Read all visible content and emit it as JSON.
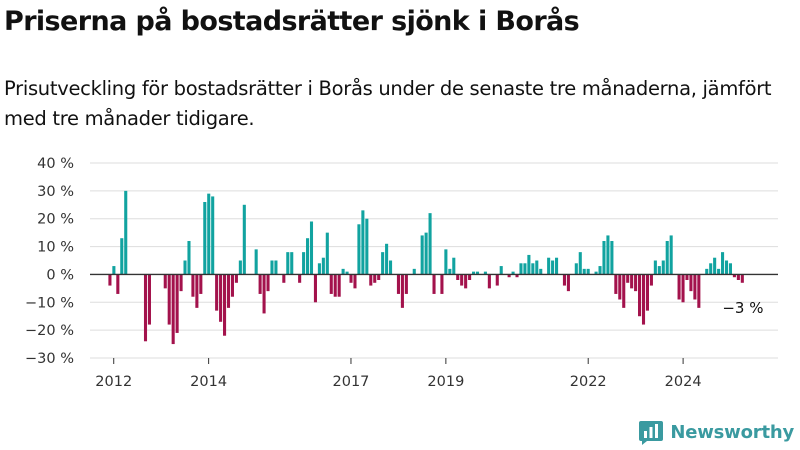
{
  "header": {
    "title": "Priserna på bostadsrätter sjönk i Borås",
    "subtitle": "Prisutveckling för bostadsrätter i Borås under de senaste tre månaderna, jämfört med tre månader tidigare."
  },
  "brand": {
    "name": "Newsworthy",
    "icon": "newsworthy-logo-icon"
  },
  "colors": {
    "positive": "#11a3a0",
    "negative": "#a3124c",
    "grid": "#dddddd",
    "zero_line": "#333333",
    "text": "#333333"
  },
  "chart_data": {
    "type": "bar",
    "ylim": [
      -30,
      40
    ],
    "y_ticks": [
      40,
      30,
      20,
      10,
      0,
      -10,
      -20,
      -30
    ],
    "y_tick_labels": [
      "40 %",
      "30 %",
      "20 %",
      "10 %",
      "0 %",
      "−10 %",
      "−20 %",
      "−30 %"
    ],
    "x_ticks": [
      {
        "value": 2012,
        "label": "2012"
      },
      {
        "value": 2014,
        "label": "2014"
      },
      {
        "value": 2017,
        "label": "2017"
      },
      {
        "value": 2019,
        "label": "2019"
      },
      {
        "value": 2022,
        "label": "2022"
      },
      {
        "value": 2024,
        "label": "2024"
      }
    ],
    "x_start": 2011.92,
    "x_step": 0.0833,
    "values": [
      -4,
      3,
      -7,
      13,
      30,
      0,
      0,
      0,
      0,
      -24,
      -18,
      0,
      0,
      0,
      -5,
      -18,
      -25,
      -21,
      -6,
      5,
      12,
      -8,
      -12,
      -7,
      26,
      29,
      28,
      -13,
      -17,
      -22,
      -12,
      -8,
      -3,
      5,
      25,
      0,
      0,
      9,
      -7,
      -14,
      -6,
      5,
      5,
      0,
      -3,
      8,
      8,
      0,
      -3,
      8,
      13,
      19,
      -10,
      4,
      6,
      15,
      -7,
      -8,
      -8,
      2,
      1,
      -3,
      -5,
      18,
      23,
      20,
      -4,
      -3,
      -2,
      8,
      11,
      5,
      0,
      -7,
      -12,
      -7,
      0,
      2,
      0,
      14,
      15,
      22,
      -7,
      0,
      -7,
      9,
      2,
      6,
      -2,
      -4,
      -5,
      -2,
      1,
      1,
      0,
      1,
      -5,
      0,
      -4,
      3,
      0,
      -1,
      1,
      -1,
      4,
      4,
      7,
      4,
      5,
      2,
      0,
      6,
      5,
      6,
      0,
      -4,
      -6,
      0,
      4,
      8,
      2,
      2,
      0,
      1,
      3,
      12,
      14,
      12,
      -7,
      -9,
      -12,
      -3,
      -5,
      -6,
      -15,
      -18,
      -13,
      -4,
      5,
      3,
      5,
      12,
      14,
      0,
      -9,
      -10,
      -2,
      -6,
      -9,
      -12,
      0,
      2,
      4,
      6,
      2,
      8,
      5,
      4,
      -1,
      -2,
      -3
    ],
    "last_label": "−3 %",
    "title": "",
    "xlabel": "",
    "ylabel": ""
  }
}
